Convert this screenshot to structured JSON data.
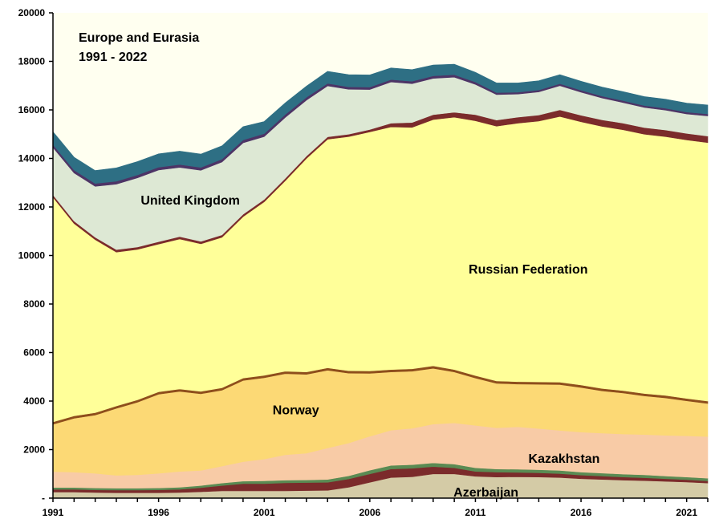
{
  "chart_data": {
    "type": "area",
    "stacked": true,
    "title": "Europe and Eurasia",
    "subtitle": "1991 - 2022",
    "xlabel": "",
    "ylabel": "",
    "xlim": [
      1991,
      2022
    ],
    "ylim": [
      0,
      20000
    ],
    "x_ticks": [
      1991,
      1996,
      2001,
      2006,
      2011,
      2016,
      2021
    ],
    "y_ticks": [
      0,
      2000,
      4000,
      6000,
      8000,
      10000,
      12000,
      14000,
      16000,
      18000,
      20000
    ],
    "y_tick_labels": [
      "-",
      "2000",
      "4000",
      "6000",
      "8000",
      "10000",
      "12000",
      "14000",
      "16000",
      "18000",
      "20000"
    ],
    "grid": false,
    "plot_background": "#fffff0",
    "x": [
      1991,
      1992,
      1993,
      1994,
      1995,
      1996,
      1997,
      1998,
      1999,
      2000,
      2001,
      2002,
      2003,
      2004,
      2005,
      2006,
      2007,
      2008,
      2009,
      2010,
      2011,
      2012,
      2013,
      2014,
      2015,
      2016,
      2017,
      2018,
      2019,
      2020,
      2021,
      2022
    ],
    "series": [
      {
        "name": "Azerbaijan",
        "color": "#d4cba6",
        "values": [
          250,
          250,
          230,
          220,
          220,
          220,
          230,
          260,
          300,
          300,
          300,
          300,
          310,
          320,
          450,
          650,
          850,
          880,
          1000,
          1000,
          900,
          870,
          880,
          870,
          850,
          800,
          770,
          740,
          720,
          690,
          660,
          620
        ]
      },
      {
        "name": "",
        "color": "#7b2b2b",
        "values": [
          110,
          110,
          110,
          110,
          110,
          120,
          130,
          170,
          220,
          300,
          300,
          330,
          330,
          330,
          340,
          350,
          350,
          350,
          300,
          250,
          200,
          200,
          180,
          170,
          160,
          150,
          140,
          130,
          120,
          110,
          100,
          90
        ]
      },
      {
        "name": "",
        "color": "#5a8b53",
        "values": [
          80,
          80,
          80,
          80,
          80,
          80,
          90,
          90,
          100,
          100,
          110,
          110,
          110,
          120,
          130,
          150,
          150,
          150,
          150,
          150,
          150,
          130,
          130,
          130,
          130,
          120,
          120,
          120,
          120,
          110,
          110,
          110
        ]
      },
      {
        "name": "Kazakhstan",
        "color": "#f8cba6",
        "values": [
          650,
          630,
          600,
          530,
          550,
          600,
          650,
          620,
          700,
          800,
          900,
          1050,
          1100,
          1300,
          1350,
          1400,
          1450,
          1500,
          1600,
          1700,
          1750,
          1700,
          1750,
          1700,
          1650,
          1650,
          1650,
          1650,
          1660,
          1680,
          1700,
          1720
        ]
      },
      {
        "name": "Norway",
        "color": "#fcd975",
        "values": [
          1950,
          2220,
          2400,
          2760,
          2990,
          3260,
          3300,
          3160,
          3130,
          3350,
          3350,
          3340,
          3250,
          3200,
          2880,
          2590,
          2400,
          2350,
          2300,
          2100,
          1950,
          1830,
          1760,
          1820,
          1890,
          1840,
          1740,
          1690,
          1590,
          1540,
          1440,
          1360
        ]
      },
      {
        "name": "",
        "color": "#8e4e1c",
        "values": [
          100,
          100,
          100,
          100,
          100,
          100,
          100,
          100,
          100,
          100,
          100,
          100,
          100,
          100,
          100,
          100,
          100,
          100,
          100,
          100,
          100,
          100,
          100,
          100,
          100,
          100,
          100,
          100,
          100,
          100,
          100,
          100
        ]
      },
      {
        "name": "Russian Federation",
        "color": "#ffff99",
        "values": [
          9260,
          7930,
          7130,
          6340,
          6200,
          6090,
          6180,
          6080,
          6200,
          6650,
          7150,
          7850,
          8800,
          9420,
          9650,
          9850,
          10000,
          9950,
          10150,
          10400,
          10500,
          10500,
          10650,
          10750,
          10950,
          10850,
          10800,
          10750,
          10690,
          10670,
          10650,
          10650
        ]
      },
      {
        "name": "",
        "color": "#7b2b2b",
        "values": [
          100,
          100,
          100,
          100,
          100,
          100,
          100,
          100,
          100,
          100,
          100,
          100,
          100,
          100,
          100,
          100,
          150,
          200,
          200,
          200,
          250,
          250,
          250,
          250,
          270,
          270,
          270,
          270,
          270,
          270,
          270,
          270
        ]
      },
      {
        "name": "United Kingdom",
        "color": "#dde8d4",
        "values": [
          1950,
          1980,
          2100,
          2700,
          2850,
          2950,
          2850,
          2930,
          3000,
          2940,
          2590,
          2510,
          2300,
          2100,
          1850,
          1650,
          1700,
          1600,
          1500,
          1450,
          1250,
          1050,
          950,
          950,
          1000,
          950,
          900,
          850,
          830,
          820,
          800,
          830
        ]
      },
      {
        "name": "",
        "color": "#4d3466",
        "values": [
          120,
          120,
          120,
          120,
          120,
          120,
          120,
          120,
          120,
          120,
          120,
          120,
          120,
          100,
          100,
          100,
          100,
          100,
          100,
          100,
          100,
          80,
          80,
          80,
          80,
          80,
          80,
          80,
          80,
          80,
          80,
          80
        ]
      },
      {
        "name": "",
        "color": "#2e6f84",
        "values": [
          530,
          530,
          530,
          550,
          550,
          550,
          550,
          550,
          550,
          550,
          500,
          480,
          460,
          500,
          500,
          500,
          480,
          480,
          450,
          430,
          400,
          400,
          380,
          380,
          370,
          370,
          370,
          370,
          370,
          370,
          370,
          370
        ]
      }
    ],
    "annotations": [
      {
        "text": "United Kingdom",
        "x": 1997.5,
        "y": 12300
      },
      {
        "text": "Russian Federation",
        "x": 2013.5,
        "y": 9450
      },
      {
        "text": "Norway",
        "x": 2002.5,
        "y": 3650
      },
      {
        "text": "Kazakhstan",
        "x": 2015.2,
        "y": 1650
      },
      {
        "text": "Azerbaijan",
        "x": 2011.5,
        "y": 270
      }
    ]
  }
}
